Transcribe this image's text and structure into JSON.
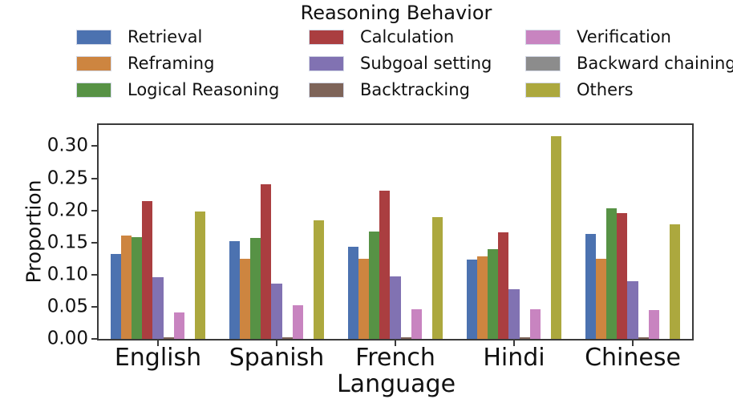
{
  "figure": {
    "title": "Reasoning Behavior"
  },
  "chart_data": {
    "type": "bar",
    "title": "Reasoning Behavior",
    "xlabel": "Language",
    "ylabel": "Proportion",
    "categories": [
      "English",
      "Spanish",
      "French",
      "Hindi",
      "Chinese"
    ],
    "series": [
      {
        "name": "Retrieval",
        "color": "#4C72B0",
        "values": [
          0.132,
          0.152,
          0.144,
          0.124,
          0.163
        ]
      },
      {
        "name": "Reframing",
        "color": "#CD8540",
        "values": [
          0.161,
          0.125,
          0.125,
          0.129,
          0.125
        ]
      },
      {
        "name": "Logical Reasoning",
        "color": "#579245",
        "values": [
          0.158,
          0.157,
          0.167,
          0.14,
          0.203
        ]
      },
      {
        "name": "Calculation",
        "color": "#AA3E40",
        "values": [
          0.214,
          0.241,
          0.231,
          0.166,
          0.196
        ]
      },
      {
        "name": "Subgoal setting",
        "color": "#8172B2",
        "values": [
          0.096,
          0.086,
          0.097,
          0.077,
          0.09
        ]
      },
      {
        "name": "Backtracking",
        "color": "#7E6459",
        "values": [
          0.002,
          0.003,
          0.003,
          0.002,
          0.002
        ]
      },
      {
        "name": "Verification",
        "color": "#C884C0",
        "values": [
          0.041,
          0.052,
          0.046,
          0.046,
          0.045
        ]
      },
      {
        "name": "Backward chaining",
        "color": "#8C8C8C",
        "values": [
          0.0,
          0.0,
          0.0,
          0.0,
          0.0
        ]
      },
      {
        "name": "Others",
        "color": "#ACA83E",
        "values": [
          0.198,
          0.185,
          0.19,
          0.316,
          0.178
        ]
      }
    ],
    "ylim": [
      0,
      0.333
    ],
    "yticks": [
      0.0,
      0.05,
      0.1,
      0.15,
      0.2,
      0.25,
      0.3
    ],
    "ytick_format": "2dp",
    "grid": false,
    "legend": {
      "position": "top",
      "columns": 3,
      "order": "column-major"
    },
    "bar_group_width": 0.8,
    "axis_color": "#3a3a3a"
  }
}
